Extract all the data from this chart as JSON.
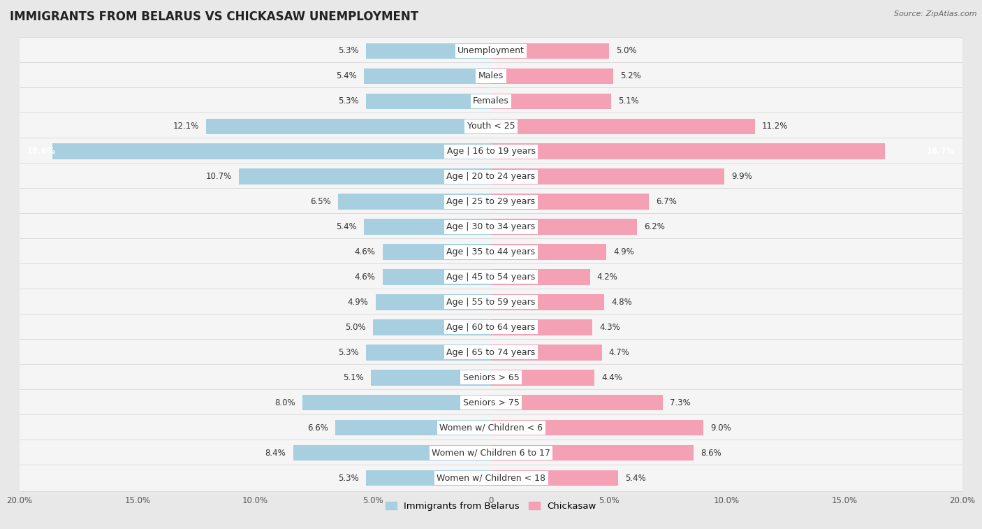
{
  "title": "IMMIGRANTS FROM BELARUS VS CHICKASAW UNEMPLOYMENT",
  "source": "Source: ZipAtlas.com",
  "categories": [
    "Unemployment",
    "Males",
    "Females",
    "Youth < 25",
    "Age | 16 to 19 years",
    "Age | 20 to 24 years",
    "Age | 25 to 29 years",
    "Age | 30 to 34 years",
    "Age | 35 to 44 years",
    "Age | 45 to 54 years",
    "Age | 55 to 59 years",
    "Age | 60 to 64 years",
    "Age | 65 to 74 years",
    "Seniors > 65",
    "Seniors > 75",
    "Women w/ Children < 6",
    "Women w/ Children 6 to 17",
    "Women w/ Children < 18"
  ],
  "belarus_values": [
    5.3,
    5.4,
    5.3,
    12.1,
    18.6,
    10.7,
    6.5,
    5.4,
    4.6,
    4.6,
    4.9,
    5.0,
    5.3,
    5.1,
    8.0,
    6.6,
    8.4,
    5.3
  ],
  "chickasaw_values": [
    5.0,
    5.2,
    5.1,
    11.2,
    16.7,
    9.9,
    6.7,
    6.2,
    4.9,
    4.2,
    4.8,
    4.3,
    4.7,
    4.4,
    7.3,
    9.0,
    8.6,
    5.4
  ],
  "belarus_color": "#a8cfe0",
  "chickasaw_color": "#f4a0b5",
  "belarus_label": "Immigrants from Belarus",
  "chickasaw_label": "Chickasaw",
  "xlim": 20.0,
  "bg_color": "#e8e8e8",
  "row_white": "#f5f5f5",
  "row_separator": "#d0d0d0",
  "title_fontsize": 12,
  "label_fontsize": 9,
  "value_fontsize": 8.5,
  "xtick_labels": [
    "20.0%",
    "15.0%",
    "10.0%",
    "5.0%",
    "0",
    "5.0%",
    "10.0%",
    "15.0%",
    "20.0%"
  ],
  "xtick_vals": [
    -20,
    -15,
    -10,
    -5,
    0,
    5,
    10,
    15,
    20
  ]
}
